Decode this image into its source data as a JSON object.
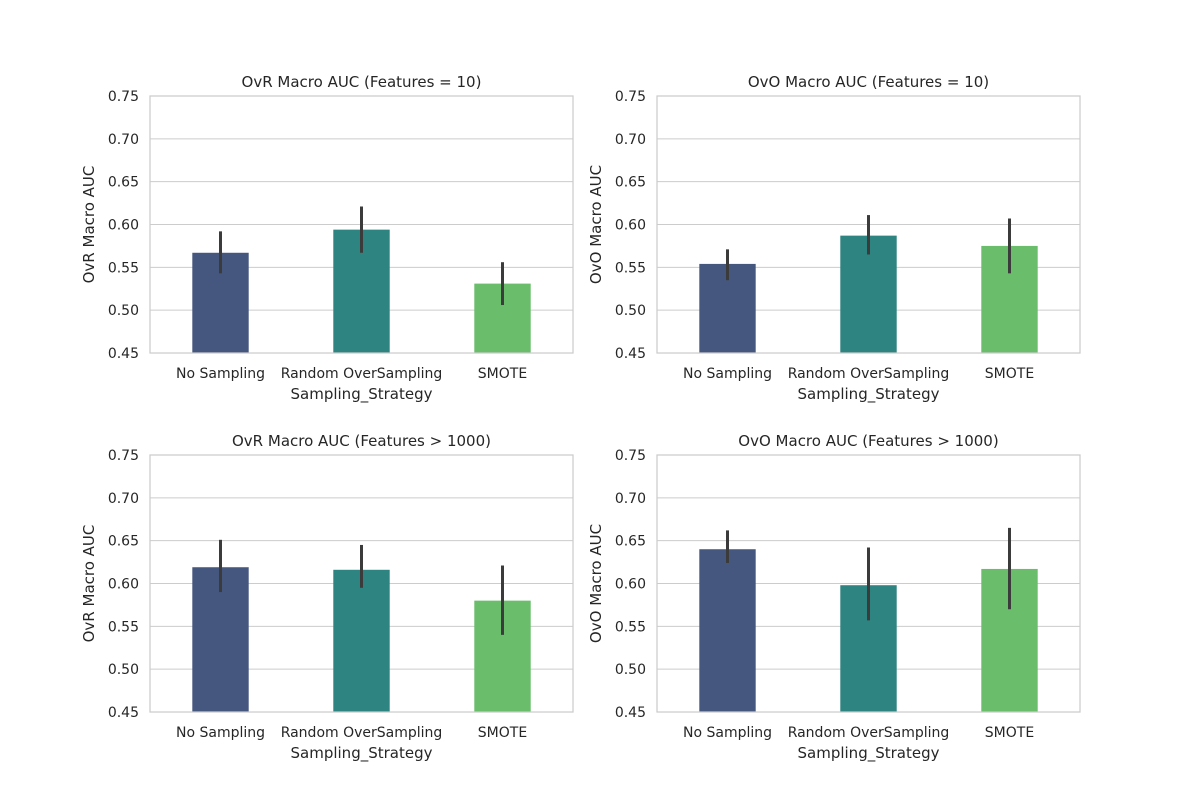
{
  "chart_data": [
    {
      "type": "bar",
      "title": "OvR Macro AUC (Features = 10)",
      "xlabel": "Sampling_Strategy",
      "ylabel": "OvR Macro AUC",
      "categories": [
        "No Sampling",
        "Random OverSampling",
        "SMOTE"
      ],
      "values": [
        0.567,
        0.594,
        0.531
      ],
      "error_bars": [
        [
          0.543,
          0.592
        ],
        [
          0.567,
          0.621
        ],
        [
          0.506,
          0.556
        ]
      ],
      "ylim": [
        0.45,
        0.75
      ],
      "yticks": [
        "0.45",
        "0.50",
        "0.55",
        "0.60",
        "0.65",
        "0.70",
        "0.75"
      ],
      "grid": true
    },
    {
      "type": "bar",
      "title": "OvO Macro AUC (Features = 10)",
      "xlabel": "Sampling_Strategy",
      "ylabel": "OvO Macro AUC",
      "categories": [
        "No Sampling",
        "Random OverSampling",
        "SMOTE"
      ],
      "values": [
        0.554,
        0.587,
        0.575
      ],
      "error_bars": [
        [
          0.535,
          0.571
        ],
        [
          0.565,
          0.611
        ],
        [
          0.543,
          0.607
        ]
      ],
      "ylim": [
        0.45,
        0.75
      ],
      "yticks": [
        "0.45",
        "0.50",
        "0.55",
        "0.60",
        "0.65",
        "0.70",
        "0.75"
      ],
      "grid": true
    },
    {
      "type": "bar",
      "title": "OvR Macro AUC (Features > 1000)",
      "xlabel": "Sampling_Strategy",
      "ylabel": "OvR Macro AUC",
      "categories": [
        "No Sampling",
        "Random OverSampling",
        "SMOTE"
      ],
      "values": [
        0.619,
        0.616,
        0.58
      ],
      "error_bars": [
        [
          0.59,
          0.651
        ],
        [
          0.595,
          0.645
        ],
        [
          0.54,
          0.621
        ]
      ],
      "ylim": [
        0.45,
        0.75
      ],
      "yticks": [
        "0.45",
        "0.50",
        "0.55",
        "0.60",
        "0.65",
        "0.70",
        "0.75"
      ],
      "grid": true
    },
    {
      "type": "bar",
      "title": "OvO Macro AUC (Features > 1000)",
      "xlabel": "Sampling_Strategy",
      "ylabel": "OvO Macro AUC",
      "categories": [
        "No Sampling",
        "Random OverSampling",
        "SMOTE"
      ],
      "values": [
        0.64,
        0.598,
        0.617
      ],
      "error_bars": [
        [
          0.624,
          0.662
        ],
        [
          0.557,
          0.642
        ],
        [
          0.57,
          0.665
        ]
      ],
      "ylim": [
        0.45,
        0.75
      ],
      "yticks": [
        "0.45",
        "0.50",
        "0.55",
        "0.60",
        "0.65",
        "0.70",
        "0.75"
      ],
      "grid": true
    }
  ],
  "colors": {
    "bars": [
      "#46577f",
      "#2e8480",
      "#69bd6b"
    ],
    "error_bar": "#3b3b3b",
    "grid": "#cccccc",
    "text": "#262626"
  }
}
